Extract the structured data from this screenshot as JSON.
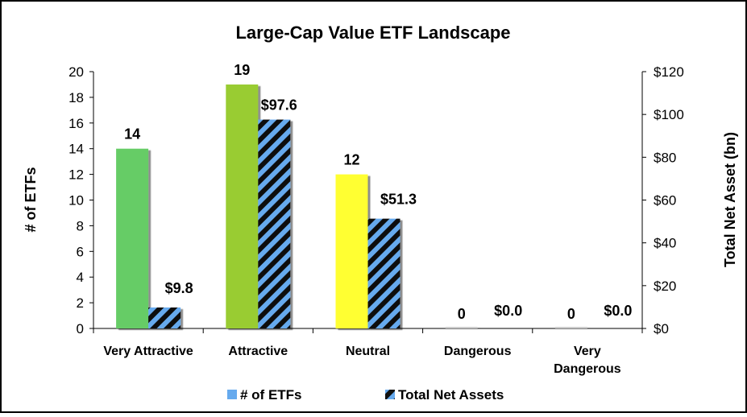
{
  "chart_data": {
    "type": "bar",
    "title": "Large-Cap Value ETF Landscape",
    "categories": [
      "Very Attractive",
      "Attractive",
      "Neutral",
      "Dangerous",
      "Very Dangerous"
    ],
    "category_lines": [
      [
        "Very Attractive"
      ],
      [
        "Attractive"
      ],
      [
        "Neutral"
      ],
      [
        "Dangerous"
      ],
      [
        "Very",
        "Dangerous"
      ]
    ],
    "series": [
      {
        "name": "# of ETFs",
        "axis": "left",
        "values": [
          14,
          19,
          12,
          0,
          0
        ],
        "labels": [
          "14",
          "19",
          "12",
          "0",
          "0"
        ],
        "colors": [
          "#66cc66",
          "#99cc33",
          "#ffff33",
          "#cccccc",
          "#cccccc"
        ],
        "legend_color": "#66aaee"
      },
      {
        "name": "Total Net Assets",
        "axis": "right",
        "values": [
          9.8,
          97.6,
          51.3,
          0.0,
          0.0
        ],
        "labels": [
          "$9.8",
          "$97.6",
          "$51.3",
          "$0.0",
          "$0.0"
        ],
        "pattern": "diagonal-stripes",
        "colors": [
          "#66aaee",
          "#111111"
        ]
      }
    ],
    "ylabel": "# of ETFs",
    "ylim": [
      0,
      20
    ],
    "yticks": [
      0,
      2,
      4,
      6,
      8,
      10,
      12,
      14,
      16,
      18,
      20
    ],
    "y2label": "Total Net Asset (bn)",
    "y2lim": [
      0,
      120
    ],
    "y2ticks": [
      0,
      20,
      40,
      60,
      80,
      100,
      120
    ],
    "y2tick_labels": [
      "$0",
      "$20",
      "$40",
      "$60",
      "$80",
      "$100",
      "$120"
    ],
    "grid": false,
    "legend": "bottom-center"
  }
}
